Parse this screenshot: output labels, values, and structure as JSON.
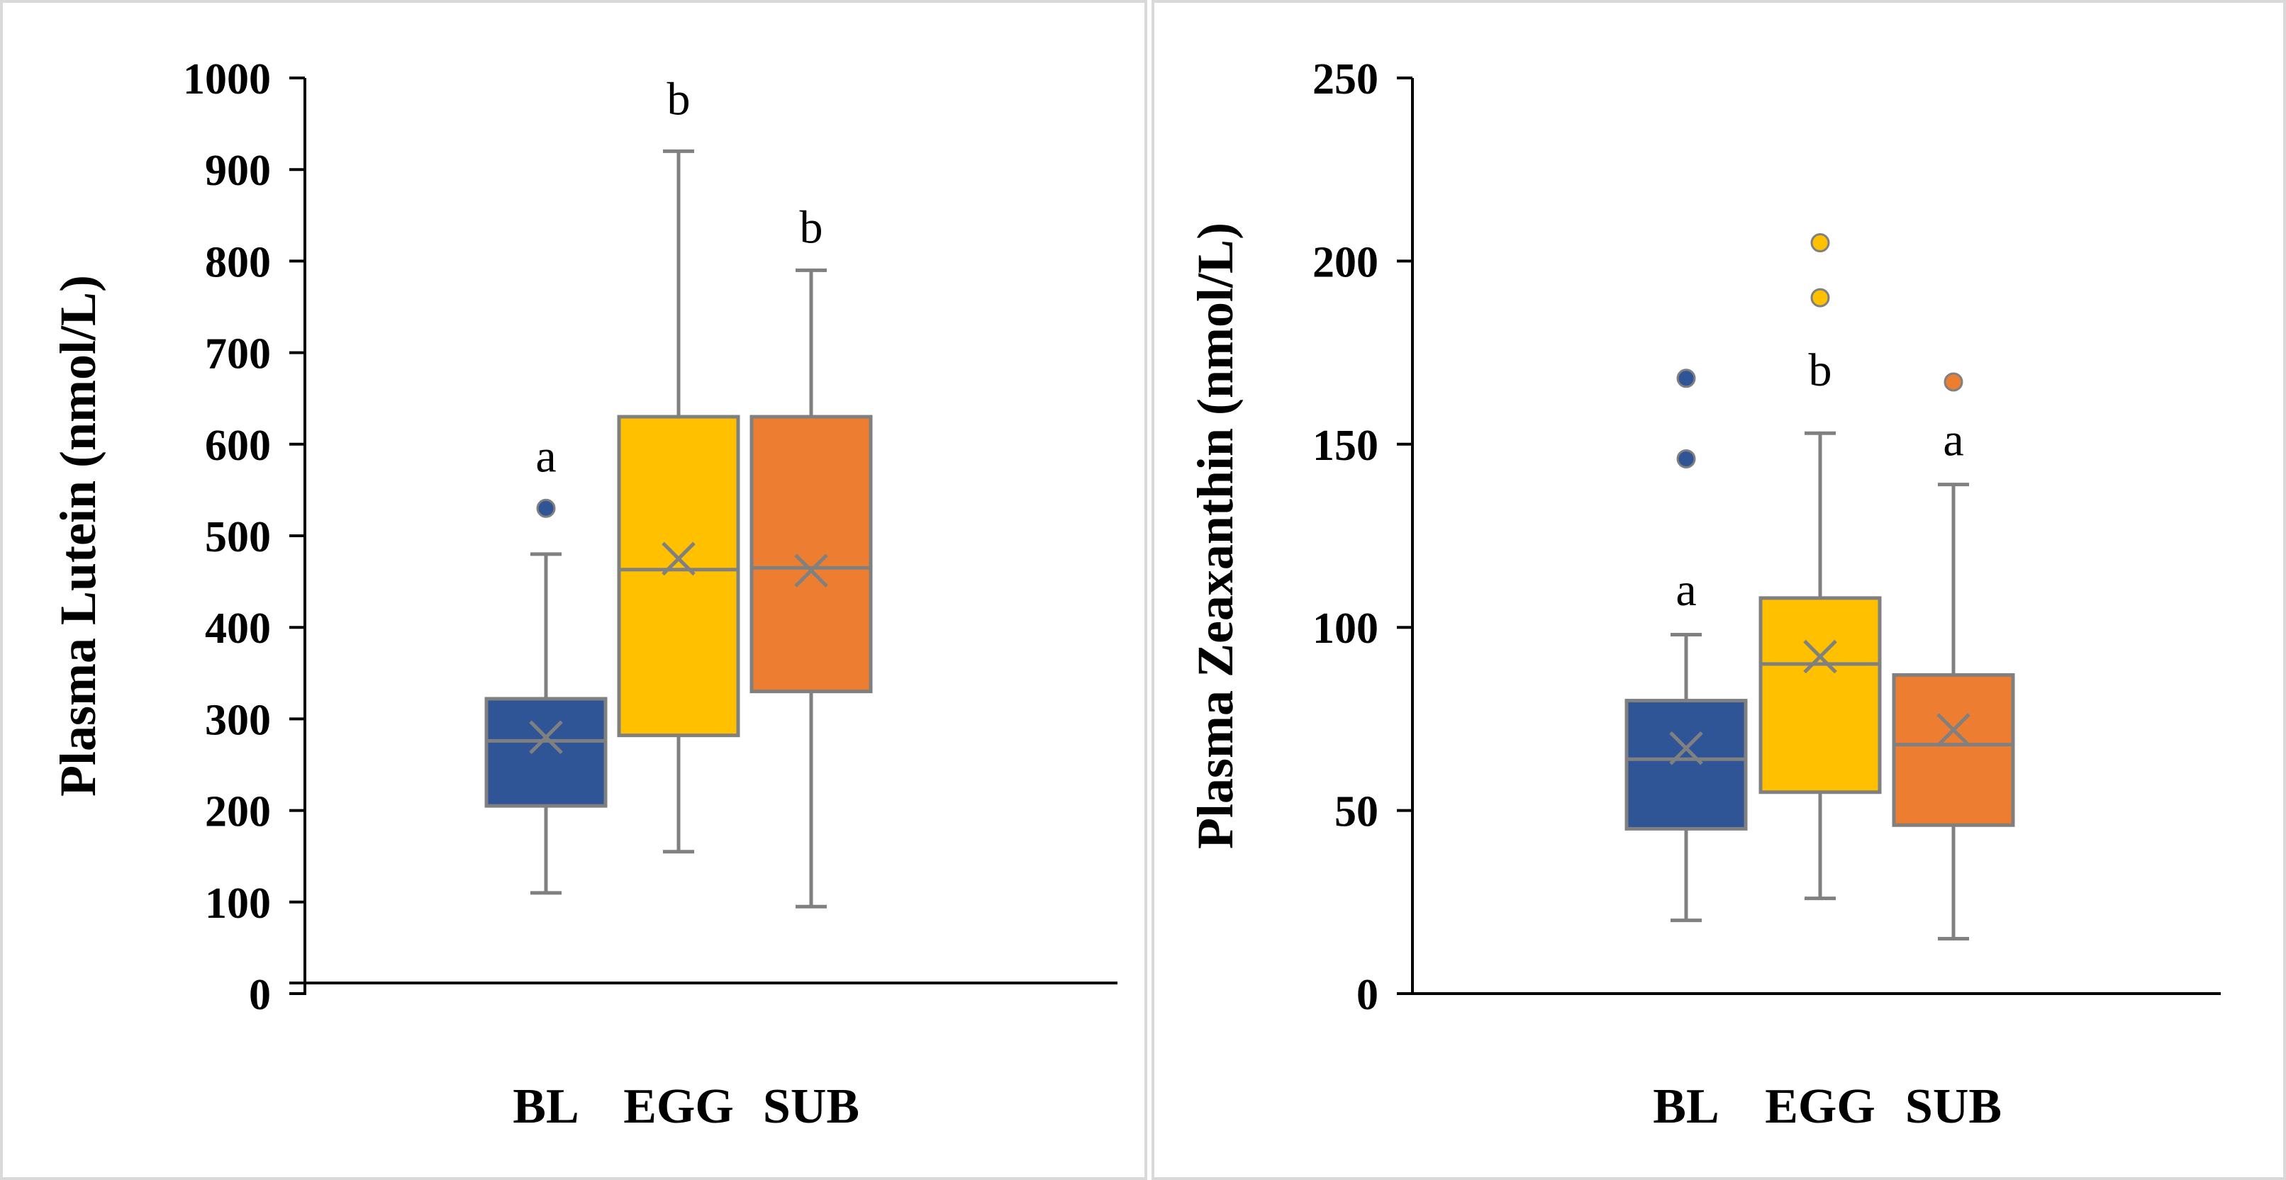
{
  "colors": {
    "bl": "#2f5597",
    "egg": "#ffc000",
    "sub": "#ed7d31",
    "stroke": "#808080",
    "axis": "#000000"
  },
  "chart_data": [
    {
      "type": "box",
      "ylabel": "Plasma Lutein (nmol/L)",
      "ylim": [
        0,
        1000
      ],
      "yticks": [
        "0",
        "100",
        "200",
        "300",
        "400",
        "500",
        "600",
        "700",
        "800",
        "900",
        "1000"
      ],
      "categories": [
        "BL",
        "EGG",
        "SUB"
      ],
      "boxes": [
        {
          "name": "BL",
          "min": 110,
          "q1": 205,
          "median": 276,
          "q3": 322,
          "max": 480,
          "mean": 280,
          "outliers": [
            530
          ],
          "letter": "a",
          "letter_y": 570
        },
        {
          "name": "EGG",
          "min": 155,
          "q1": 282,
          "median": 463,
          "q3": 630,
          "max": 920,
          "mean": 475,
          "outliers": [],
          "letter": "b",
          "letter_y": 960
        },
        {
          "name": "SUB",
          "min": 95,
          "q1": 330,
          "median": 465,
          "q3": 630,
          "max": 790,
          "mean": 462,
          "outliers": [],
          "letter": "b",
          "letter_y": 820
        }
      ]
    },
    {
      "type": "box",
      "ylabel": "Plasma Zeaxanthin (nmol/L)",
      "ylim": [
        0,
        250
      ],
      "yticks": [
        "0",
        "50",
        "100",
        "150",
        "200",
        "250"
      ],
      "categories": [
        "BL",
        "EGG",
        "SUB"
      ],
      "boxes": [
        {
          "name": "BL",
          "min": 20,
          "q1": 45,
          "median": 64,
          "q3": 80,
          "max": 98,
          "mean": 67,
          "outliers": [
            146,
            168
          ],
          "letter": "a",
          "letter_y": 106
        },
        {
          "name": "EGG",
          "min": 26,
          "q1": 55,
          "median": 90,
          "q3": 108,
          "max": 153,
          "mean": 92,
          "outliers": [
            190,
            205
          ],
          "letter": "b",
          "letter_y": 166
        },
        {
          "name": "SUB",
          "min": 15,
          "q1": 46,
          "median": 68,
          "q3": 87,
          "max": 139,
          "mean": 72,
          "outliers": [
            167
          ],
          "letter": "a",
          "letter_y": 147
        }
      ]
    }
  ]
}
